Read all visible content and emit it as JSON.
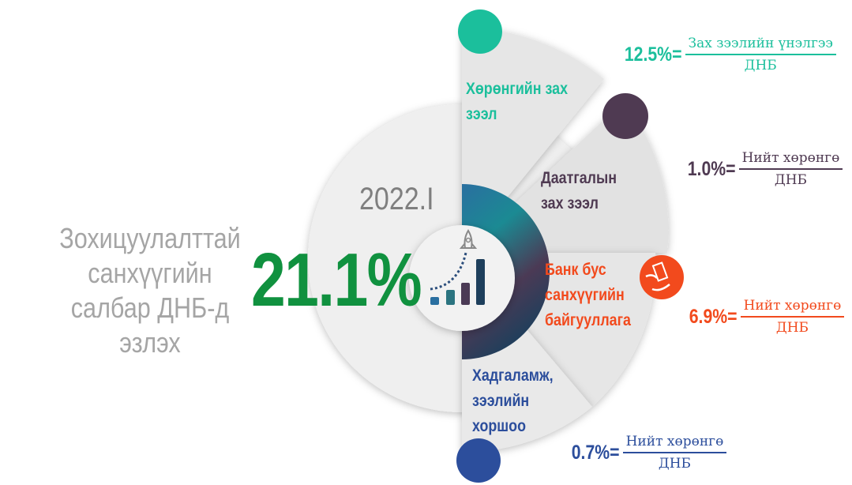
{
  "title": "Зохицуулалттай санхүүгийн салбар ДНБ-д эзлэх",
  "period": "2022.I",
  "total": "21.1%",
  "colors": {
    "teal": "#1bbf9c",
    "purple": "#4f3a52",
    "orange": "#f24a1d",
    "blue": "#2c4e9c",
    "green": "#10913f"
  },
  "segments": [
    {
      "label_line1": "Хөрөнгийн зах",
      "label_line2": "зээл",
      "value": "12.5%=",
      "numerator": "Зах зээлийн үнэлгээ",
      "denominator": "ДНБ",
      "color": "#1bbf9c"
    },
    {
      "label_line1": "Даатгалын",
      "label_line2": "зах зээл",
      "value": "1.0%=",
      "numerator": "Нийт хөрөнгө",
      "denominator": "ДНБ",
      "color": "#4f3a52"
    },
    {
      "label_line1": "Банк бус",
      "label_line2": "санхүүгийн",
      "label_line3": "байгууллага",
      "value": "6.9%=",
      "numerator": "Нийт хөрөнгө",
      "denominator": "ДНБ",
      "color": "#f24a1d",
      "icon": "money-hand-icon"
    },
    {
      "label_line1": "Хадгаламж,",
      "label_line2": "зээлийн",
      "label_line3": "хоршоо",
      "value": "0.7%=",
      "numerator": "Нийт хөрөнгө",
      "denominator": "ДНБ",
      "color": "#2c4e9c"
    }
  ],
  "center_icon": "rocket-growth-chart-icon"
}
